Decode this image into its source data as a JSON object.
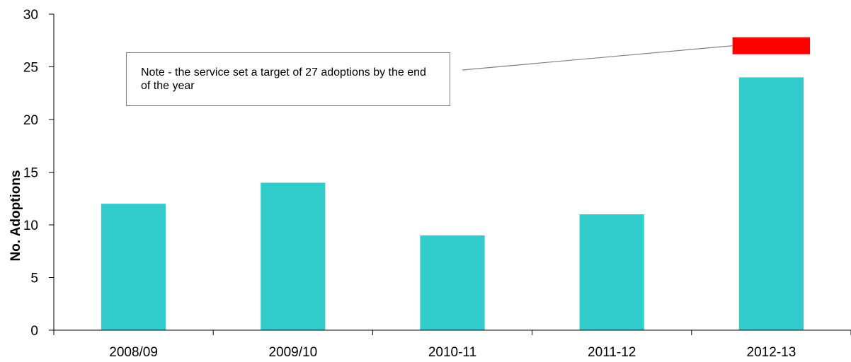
{
  "chart_data": {
    "type": "bar",
    "categories": [
      "2008/09",
      "2009/10",
      "2010-11",
      "2011-12",
      "2012-13"
    ],
    "values": [
      12,
      14,
      9,
      11,
      24
    ],
    "ylabel": "No. Adoptions",
    "xlabel": "",
    "ylim": [
      0,
      30
    ],
    "yticks": [
      0,
      5,
      10,
      15,
      20,
      25,
      30
    ],
    "grid": false,
    "legend": "none",
    "bar_color": "#33CCCC",
    "target": {
      "category": "2012-13",
      "value": 27,
      "color": "#FF0000"
    },
    "annotation": "Note - the service set a target of 27 adoptions by the end of the year"
  }
}
